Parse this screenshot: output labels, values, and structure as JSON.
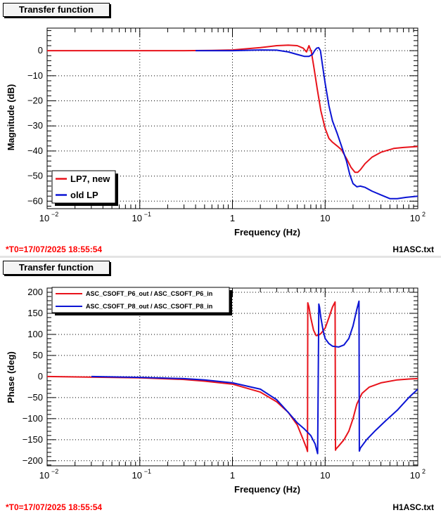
{
  "colors": {
    "red": "#e8131b",
    "blue": "#0b14d4"
  },
  "plots": [
    {
      "header": "Transfer function",
      "t0": "*T0=17/07/2025 18:55:54",
      "file": "H1ASC.txt",
      "chart_data": {
        "type": "line",
        "xscale": "log",
        "xlabel": "Frequency (Hz)",
        "ylabel": "Magnitude (dB)",
        "xlim": [
          0.01,
          100
        ],
        "ylim": [
          -63,
          9
        ],
        "yticks": [
          0,
          -10,
          -20,
          -30,
          -40,
          -50,
          -60
        ],
        "xtick_labels": [
          "10",
          "10",
          "1",
          "10",
          "10"
        ],
        "xtick_exps": [
          "−2",
          "−1",
          "",
          "",
          "2"
        ],
        "legend_position": "bottom-left",
        "series": [
          {
            "name": "LP7, new",
            "color": "red",
            "x": [
              0.01,
              0.1,
              0.3,
              0.6,
              1,
              2,
              3,
              4,
              5,
              5.8,
              6.3,
              6.7,
              7.1,
              7.6,
              8.2,
              9,
              10,
              11,
              12,
              13.5,
              15,
              17,
              19,
              21,
              22.5,
              24,
              27,
              32,
              40,
              55,
              70,
              100
            ],
            "y": [
              0,
              0,
              0,
              0.1,
              0.3,
              1.2,
              2,
              2.2,
              2,
              1,
              -0.5,
              2,
              -0.5,
              -7,
              -15,
              -24,
              -31,
              -35,
              -36.5,
              -38,
              -39.5,
              -43,
              -46.5,
              -48.5,
              -48.5,
              -47.5,
              -45,
              -42.5,
              -40.5,
              -39,
              -38.6,
              -38.2
            ]
          },
          {
            "name": "old LP",
            "color": "blue",
            "x": [
              0.4,
              1,
              2,
              3,
              4,
              5,
              6,
              6.7,
              7.3,
              7.7,
              8.1,
              8.5,
              8.9,
              9.3,
              10,
              11,
              12,
              13.5,
              15,
              17,
              18.5,
              20,
              22,
              24,
              27,
              32,
              40,
              50,
              60,
              75,
              100
            ],
            "y": [
              0,
              0,
              0.3,
              0.2,
              -0.5,
              -1.5,
              -2.3,
              -2.3,
              -1.5,
              0,
              1,
              1.2,
              0,
              -5,
              -13,
              -22,
              -28,
              -33,
              -38,
              -44,
              -49.5,
              -53,
              -54.3,
              -54,
              -54.5,
              -56,
              -57.5,
              -59,
              -59,
              -58.5,
              -58
            ]
          }
        ]
      }
    },
    {
      "header": "Transfer function",
      "t0": "*T0=17/07/2025 18:55:54",
      "file": "H1ASC.txt",
      "chart_data": {
        "type": "line",
        "xscale": "log",
        "xlabel": "Frequency (Hz)",
        "ylabel": "Phase (deg)",
        "xlim": [
          0.01,
          100
        ],
        "ylim": [
          -212,
          210
        ],
        "yticks": [
          200,
          150,
          100,
          50,
          0,
          -50,
          -100,
          -150,
          -200
        ],
        "xtick_labels": [
          "10",
          "10",
          "1",
          "10",
          "10"
        ],
        "xtick_exps": [
          "−2",
          "−1",
          "",
          "",
          "2"
        ],
        "legend_position": "top-left",
        "series": [
          {
            "name": "ASC_CSOFT_P6_out / ASC_CSOFT_P6_in",
            "color": "red",
            "x": [
              0.01,
              0.1,
              0.3,
              0.5,
              1,
              2,
              3,
              4,
              5,
              5.8,
              6.3,
              6.45,
              6.5,
              6.7,
              7,
              7.5,
              8,
              8.5,
              9,
              10,
              11,
              12,
              12.8,
              12.95,
              13.1,
              14,
              16,
              18,
              20,
              22,
              25,
              30,
              40,
              60,
              80,
              100
            ],
            "y": [
              0,
              -3,
              -7,
              -11,
              -18,
              -37,
              -60,
              -85,
              -115,
              -150,
              -170,
              -178,
              175,
              165,
              140,
              110,
              97,
              98,
              102,
              115,
              140,
              165,
              177,
              -175,
              -172,
              -165,
              -150,
              -130,
              -100,
              -65,
              -40,
              -25,
              -15,
              -8,
              -6,
              -5
            ]
          },
          {
            "name": "ASC_CSOFT_P8_out / ASC_CSOFT_P8_in",
            "color": "blue",
            "x": [
              0.03,
              0.1,
              0.3,
              0.5,
              1,
              2,
              3,
              4,
              5,
              6,
              7,
              7.8,
              8.3,
              8.55,
              8.7,
              9,
              9.5,
              10,
              11,
              12,
              14,
              16,
              18,
              20,
              22,
              23.2,
              23.4,
              24,
              28,
              35,
              45,
              60,
              80,
              100
            ],
            "y": [
              0,
              -2,
              -5,
              -8,
              -15,
              -30,
              -55,
              -85,
              -110,
              -125,
              -140,
              -160,
              -183,
              172,
              165,
              140,
              110,
              90,
              78,
              72,
              70,
              75,
              90,
              120,
              160,
              179,
              -177,
              -170,
              -150,
              -128,
              -105,
              -80,
              -50,
              -30
            ]
          }
        ]
      }
    }
  ]
}
